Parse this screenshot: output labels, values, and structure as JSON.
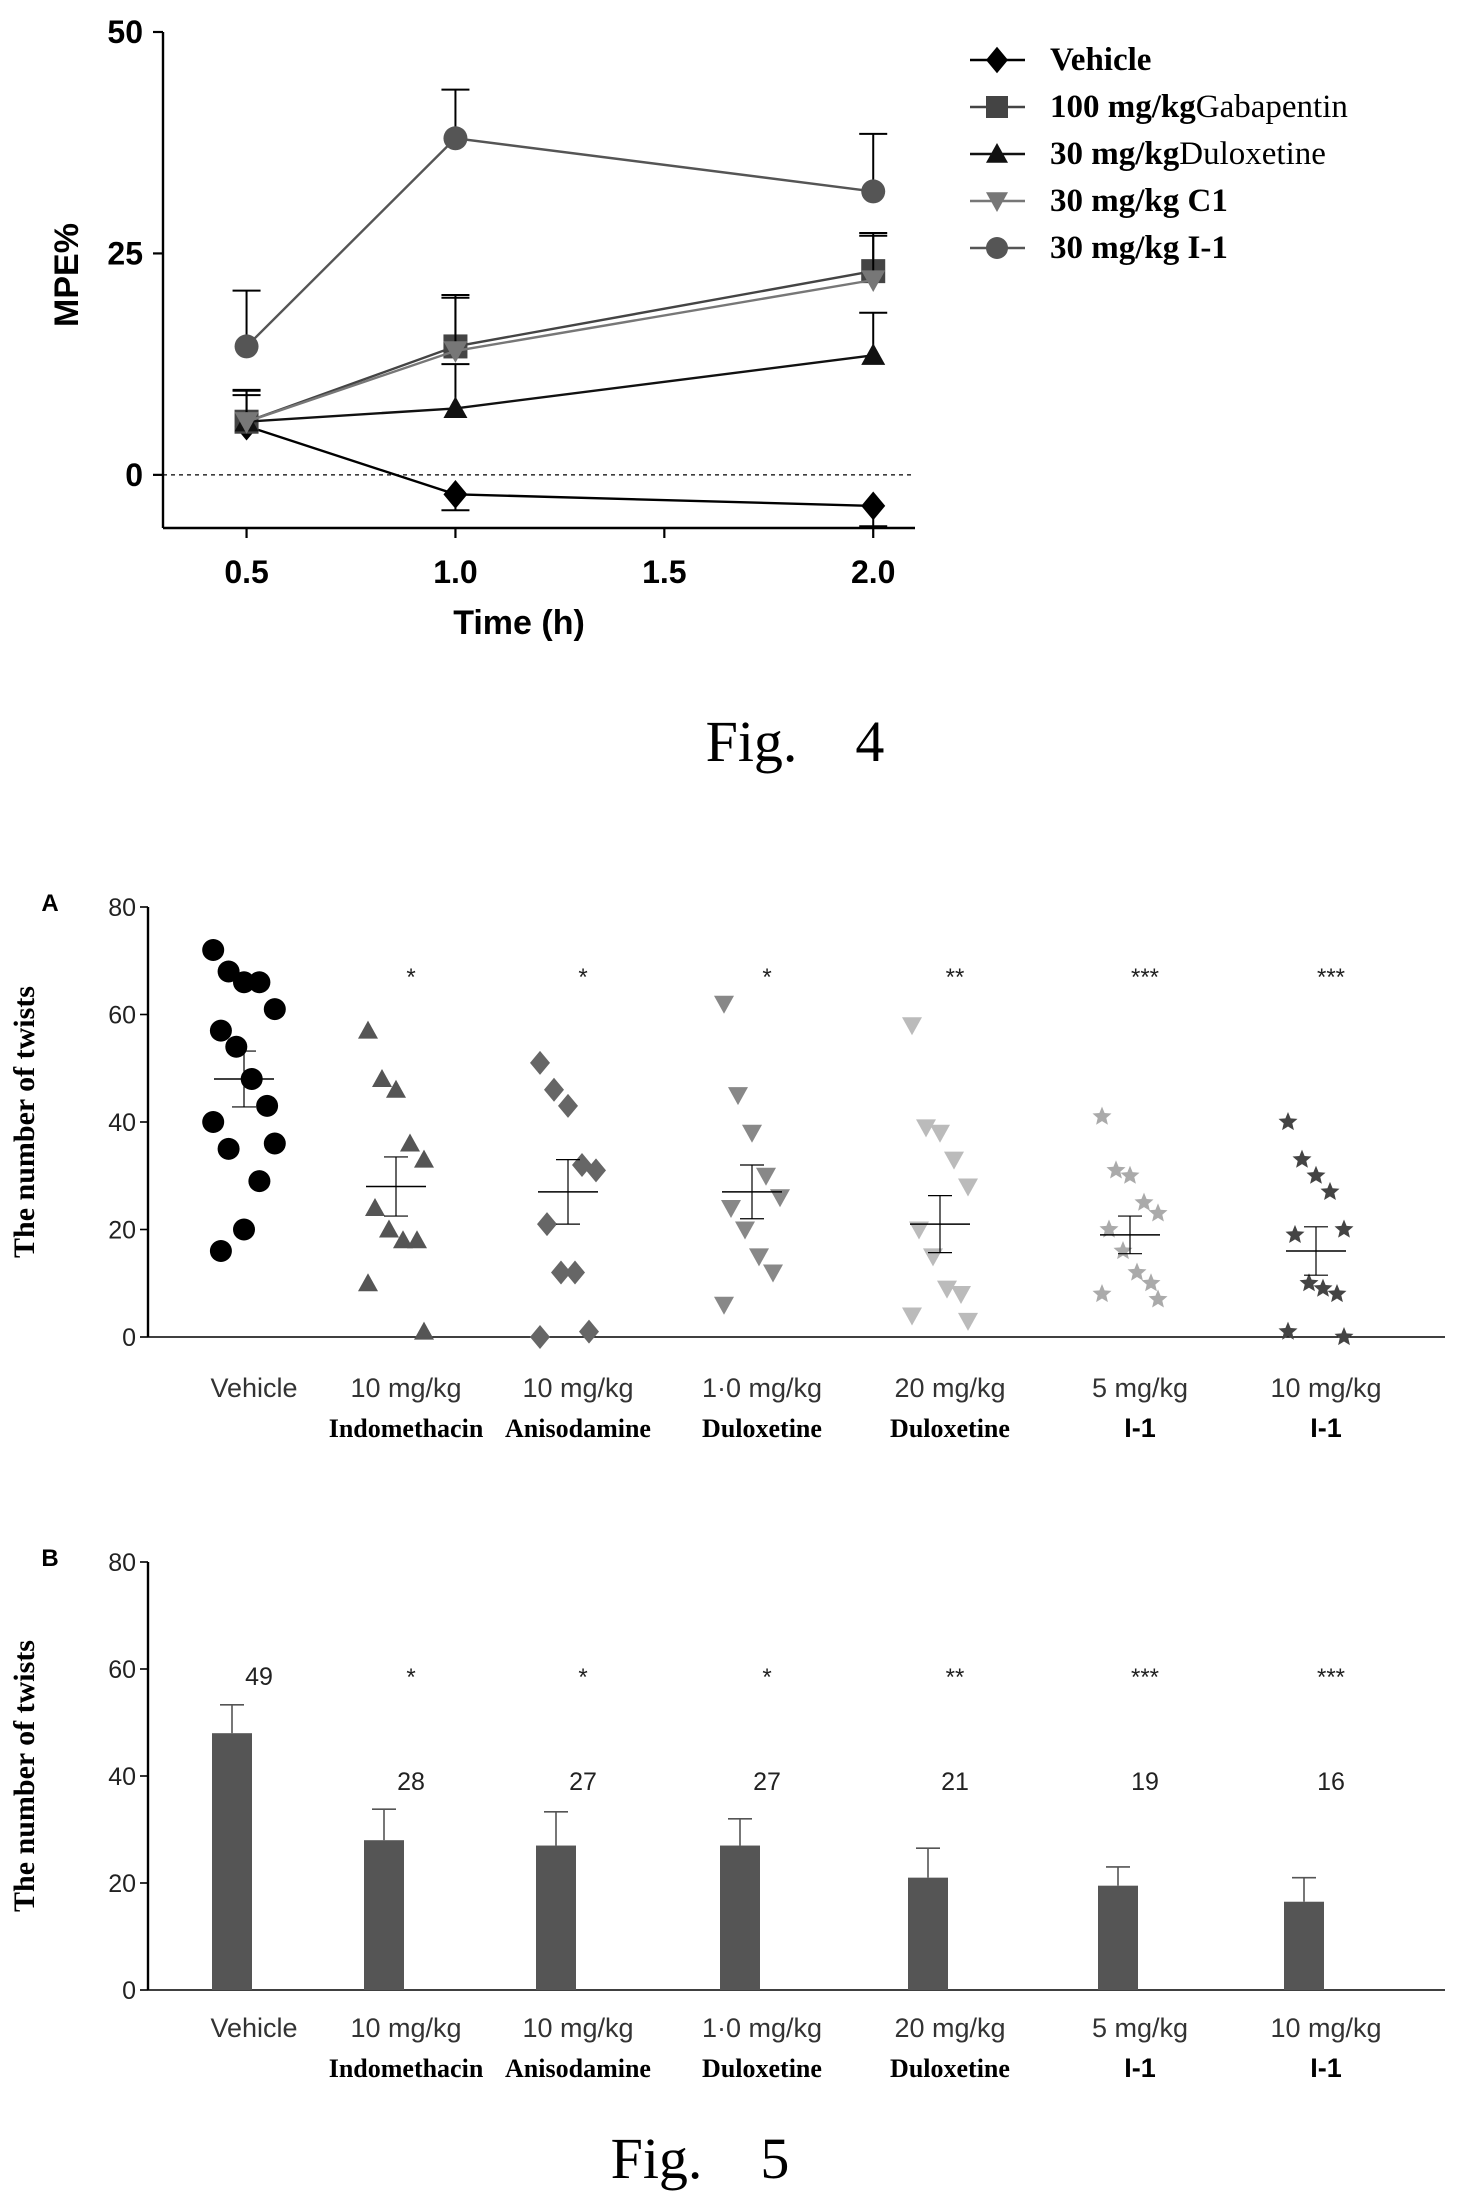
{
  "figures": {
    "fig4_caption": "Fig.    4",
    "fig5_caption": "Fig.    5"
  },
  "chart_data": [
    {
      "id": "fig4",
      "type": "line",
      "xlabel": "Time (h)",
      "ylabel": "MPE%",
      "x": [
        0.5,
        1.0,
        1.5,
        2.0
      ],
      "x_ticks": [
        "0.5",
        "1.0",
        "1.5",
        "2.0"
      ],
      "y_ticks": [
        "0",
        "25",
        "50"
      ],
      "xlim": [
        0.3,
        2.1
      ],
      "ylim": [
        -6,
        50
      ],
      "reference_line": 0,
      "series": [
        {
          "name": "Vehicle",
          "legend_bold": "Vehicle",
          "legend_rest": "",
          "marker": "diamond",
          "color": "#000000",
          "x": [
            0.5,
            1.0,
            2.0
          ],
          "y": [
            5.5,
            -2.2,
            -3.5
          ],
          "err": [
            0,
            1.8,
            2.3
          ]
        },
        {
          "name": "100 mg/kg Gabapentin",
          "legend_bold": "100 mg/kg",
          "legend_rest": "Gabapentin",
          "marker": "square",
          "color": "#444444",
          "x": [
            0.5,
            1.0,
            2.0
          ],
          "y": [
            6.0,
            14.5,
            23.0
          ],
          "err": [
            3.5,
            5.8,
            4.3
          ]
        },
        {
          "name": "30 mg/kg Duloxetine",
          "legend_bold": "30 mg/kg",
          "legend_rest": "Duloxetine",
          "marker": "triangle-up",
          "color": "#111111",
          "x": [
            0.5,
            1.0,
            2.0
          ],
          "y": [
            6.0,
            7.5,
            13.5
          ],
          "err": [
            3.6,
            5.0,
            4.8
          ]
        },
        {
          "name": "30 mg/kg C1",
          "legend_bold": "30 mg/kg C1",
          "legend_rest": "",
          "marker": "triangle-down",
          "color": "#777777",
          "x": [
            0.5,
            1.0,
            2.0
          ],
          "y": [
            6.0,
            14.0,
            22.0
          ],
          "err": [
            3.0,
            6.0,
            5.0
          ]
        },
        {
          "name": "30 mg/kg I-1",
          "legend_bold": "30 mg/kg I-1",
          "legend_rest": "",
          "marker": "circle",
          "color": "#555555",
          "x": [
            0.5,
            1.0,
            2.0
          ],
          "y": [
            14.5,
            38.0,
            32.0
          ],
          "err": [
            6.3,
            5.5,
            6.5
          ]
        }
      ]
    },
    {
      "id": "fig5A",
      "type": "scatter",
      "panel": "A",
      "ylabel": "The number of twists",
      "y_ticks": [
        "0",
        "20",
        "40",
        "60",
        "80"
      ],
      "ylim": [
        0,
        80
      ],
      "categories": [
        {
          "line1": "Vehicle",
          "line2": "",
          "mean": 48,
          "sem": 5.2,
          "sig": "",
          "marker": "circle",
          "color": "#000000",
          "points": [
            72,
            68,
            66,
            66,
            61,
            57,
            54,
            48,
            43,
            40,
            36,
            35,
            29,
            20,
            16
          ]
        },
        {
          "line1": "10 mg/kg",
          "line2": "Indomethacin",
          "mean": 28,
          "sem": 5.5,
          "sig": "*",
          "marker": "triangle-up",
          "color": "#555555",
          "points": [
            57,
            48,
            46,
            36,
            33,
            24,
            20,
            18,
            18,
            10,
            1
          ]
        },
        {
          "line1": "10 mg/kg",
          "line2": "Anisodamine",
          "mean": 27,
          "sem": 6.0,
          "sig": "*",
          "marker": "diamond",
          "color": "#666666",
          "points": [
            51,
            46,
            43,
            32,
            31,
            21,
            12,
            12,
            1,
            0
          ]
        },
        {
          "line1": "1·0 mg/kg",
          "line2": "Duloxetine",
          "mean": 27,
          "sem": 5.0,
          "sig": "*",
          "marker": "triangle-down",
          "color": "#888888",
          "points": [
            62,
            45,
            38,
            30,
            26,
            24,
            20,
            15,
            12,
            6
          ]
        },
        {
          "line1": "20 mg/kg",
          "line2": "Duloxetine",
          "mean": 21,
          "sem": 5.3,
          "sig": "**",
          "marker": "triangle-down",
          "color": "#bbbbbb",
          "points": [
            58,
            39,
            38,
            33,
            28,
            20,
            15,
            9,
            8,
            4,
            3
          ]
        },
        {
          "line1": "5 mg/kg",
          "line2": "I-1",
          "mean": 19,
          "sem": 3.5,
          "sig": "***",
          "marker": "star",
          "color": "#aaaaaa",
          "points": [
            41,
            31,
            30,
            25,
            23,
            20,
            16,
            12,
            10,
            8,
            7
          ]
        },
        {
          "line1": "10 mg/kg",
          "line2": "I-1",
          "mean": 16,
          "sem": 4.5,
          "sig": "***",
          "marker": "star",
          "color": "#444444",
          "points": [
            40,
            33,
            30,
            27,
            20,
            19,
            10,
            9,
            8,
            1,
            0
          ]
        }
      ]
    },
    {
      "id": "fig5B",
      "type": "bar",
      "panel": "B",
      "ylabel": "The number of twists",
      "y_ticks": [
        "0",
        "20",
        "40",
        "60",
        "80"
      ],
      "ylim": [
        0,
        80
      ],
      "categories": [
        {
          "line1": "Vehicle",
          "line2": "",
          "value": 48,
          "err": 5.3,
          "label": "49",
          "sig": ""
        },
        {
          "line1": "10 mg/kg",
          "line2": "Indomethacin",
          "value": 28,
          "err": 5.8,
          "label": "28",
          "sig": "*"
        },
        {
          "line1": "10 mg/kg",
          "line2": "Anisodamine",
          "value": 27,
          "err": 6.3,
          "label": "27",
          "sig": "*"
        },
        {
          "line1": "1·0 mg/kg",
          "line2": "Duloxetine",
          "value": 27,
          "err": 5.0,
          "label": "27",
          "sig": "*"
        },
        {
          "line1": "20 mg/kg",
          "line2": "Duloxetine",
          "value": 21,
          "err": 5.5,
          "label": "21",
          "sig": "**"
        },
        {
          "line1": "5 mg/kg",
          "line2": "I-1",
          "value": 19.5,
          "err": 3.5,
          "label": "19",
          "sig": "***"
        },
        {
          "line1": "10 mg/kg",
          "line2": "I-1",
          "value": 16.5,
          "err": 4.5,
          "label": "16",
          "sig": "***"
        }
      ],
      "bar_color": "#555555"
    }
  ]
}
